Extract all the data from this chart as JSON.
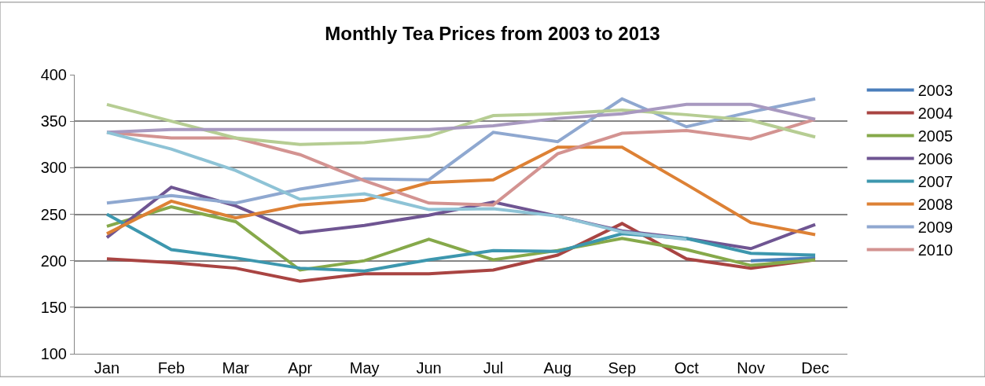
{
  "chart_data": {
    "type": "line",
    "title": "Monthly Tea Prices from 2003 to 2013",
    "categories": [
      "Jan",
      "Feb",
      "Mar",
      "Apr",
      "May",
      "Jun",
      "Jul",
      "Aug",
      "Sep",
      "Oct",
      "Nov",
      "Dec"
    ],
    "series": [
      {
        "name": "2003",
        "color": "#4a7ebb",
        "values": [
          null,
          null,
          null,
          null,
          null,
          null,
          null,
          null,
          null,
          null,
          200,
          203
        ]
      },
      {
        "name": "2004",
        "color": "#a94442",
        "values": [
          202,
          198,
          192,
          178,
          186,
          186,
          190,
          206,
          240,
          202,
          192,
          201
        ]
      },
      {
        "name": "2005",
        "color": "#86a94a",
        "values": [
          237,
          258,
          242,
          190,
          200,
          223,
          201,
          211,
          224,
          212,
          195,
          201
        ]
      },
      {
        "name": "2006",
        "color": "#6f5592",
        "values": [
          225,
          279,
          259,
          230,
          238,
          249,
          263,
          248,
          232,
          224,
          213,
          239
        ]
      },
      {
        "name": "2007",
        "color": "#3d97ae",
        "values": [
          250,
          212,
          203,
          192,
          189,
          201,
          211,
          210,
          229,
          224,
          208,
          206
        ]
      },
      {
        "name": "2008",
        "color": "#dd8135",
        "values": [
          229,
          264,
          246,
          260,
          265,
          284,
          287,
          322,
          322,
          282,
          241,
          228
        ]
      },
      {
        "name": "2009",
        "color": "#8fa8d0",
        "values": [
          262,
          270,
          262,
          277,
          288,
          287,
          338,
          328,
          374,
          344,
          360,
          374
        ]
      },
      {
        "name": "2010",
        "color": "#d39391",
        "values": [
          338,
          332,
          332,
          314,
          286,
          262,
          260,
          315,
          337,
          340,
          331,
          352
        ]
      },
      {
        "color": "#b6cd93",
        "values": [
          368,
          350,
          332,
          325,
          327,
          334,
          356,
          358,
          362,
          357,
          351,
          333
        ]
      },
      {
        "color": "#a899c0",
        "values": [
          338,
          341,
          341,
          341,
          341,
          341,
          345,
          353,
          358,
          368,
          368,
          352
        ]
      },
      {
        "color": "#8ec3d6",
        "values": [
          338,
          320,
          297,
          266,
          272,
          255,
          256,
          248,
          231,
          223,
          null,
          null
        ]
      }
    ],
    "ylim": [
      100,
      400
    ],
    "yticks": [
      100,
      150,
      200,
      250,
      300,
      350,
      400
    ],
    "grid": "y",
    "legend": "right",
    "marker": "none",
    "line_style": "solid"
  }
}
